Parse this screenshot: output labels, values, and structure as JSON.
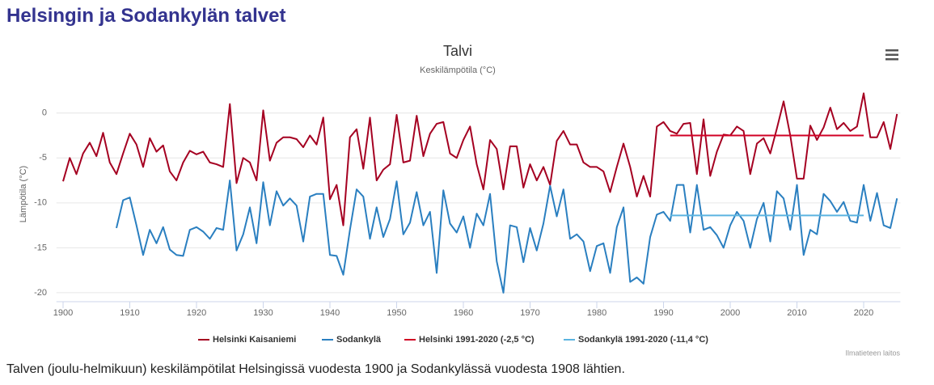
{
  "header": {
    "title": "Helsingin ja Sodankylän talvet"
  },
  "chart_data": {
    "type": "line",
    "title": "Talvi",
    "subtitle": "Keskilämpötila (°C)",
    "y_label": "Lämpötila (°C)",
    "x": [
      1900,
      1901,
      1902,
      1903,
      1904,
      1905,
      1906,
      1907,
      1908,
      1909,
      1910,
      1911,
      1912,
      1913,
      1914,
      1915,
      1916,
      1917,
      1918,
      1919,
      1920,
      1921,
      1922,
      1923,
      1924,
      1925,
      1926,
      1927,
      1928,
      1929,
      1930,
      1931,
      1932,
      1933,
      1934,
      1935,
      1936,
      1937,
      1938,
      1939,
      1940,
      1941,
      1942,
      1943,
      1944,
      1945,
      1946,
      1947,
      1948,
      1949,
      1950,
      1951,
      1952,
      1953,
      1954,
      1955,
      1956,
      1957,
      1958,
      1959,
      1960,
      1961,
      1962,
      1963,
      1964,
      1965,
      1966,
      1967,
      1968,
      1969,
      1970,
      1971,
      1972,
      1973,
      1974,
      1975,
      1976,
      1977,
      1978,
      1979,
      1980,
      1981,
      1982,
      1983,
      1984,
      1985,
      1986,
      1987,
      1988,
      1989,
      1990,
      1991,
      1992,
      1993,
      1994,
      1995,
      1996,
      1997,
      1998,
      1999,
      2000,
      2001,
      2002,
      2003,
      2004,
      2005,
      2006,
      2007,
      2008,
      2009,
      2010,
      2011,
      2012,
      2013,
      2014,
      2015,
      2016,
      2017,
      2018,
      2019,
      2020,
      2021,
      2022,
      2023,
      2024,
      2025
    ],
    "series": [
      {
        "name": "Helsinki Kaisaniemi",
        "color": "#a50021",
        "values": [
          -7.6,
          -5,
          -6.8,
          -4.5,
          -3.3,
          -4.8,
          -2.2,
          -5.5,
          -6.8,
          -4.5,
          -2.3,
          -3.5,
          -6,
          -2.8,
          -4.3,
          -3.6,
          -6.5,
          -7.5,
          -5.5,
          -4.2,
          -4.6,
          -4.3,
          -5.5,
          -5.7,
          -6,
          1,
          -7.8,
          -5,
          -5.5,
          -7.5,
          0.3,
          -5.3,
          -3.3,
          -2.7,
          -2.7,
          -2.9,
          -3.8,
          -2.5,
          -3.5,
          -0.5,
          -9.6,
          -8,
          -12.5,
          -2.7,
          -1.8,
          -6.2,
          -0.5,
          -7.5,
          -6.3,
          -5.7,
          -0.2,
          -5.5,
          -5.3,
          -0.3,
          -4.8,
          -2.3,
          -1.2,
          -1,
          -4.5,
          -5,
          -3,
          -1.5,
          -5.7,
          -8.5,
          -3,
          -4,
          -8.5,
          -3.7,
          -3.7,
          -8.3,
          -5.7,
          -7.5,
          -6,
          -8,
          -3.1,
          -2,
          -3.5,
          -3.5,
          -5.5,
          -6,
          -6,
          -6.5,
          -8.8,
          -6,
          -3.4,
          -6,
          -9.3,
          -7,
          -9.3,
          -1.5,
          -1,
          -2,
          -2.3,
          -1.2,
          -1.1,
          -6.8,
          -0.7,
          -7,
          -4.3,
          -2.4,
          -2.5,
          -1.5,
          -2,
          -6.8,
          -3.4,
          -2.8,
          -4.5,
          -1.7,
          1.3,
          -2.5,
          -7.3,
          -7.3,
          -1.4,
          -3,
          -1.6,
          0.6,
          -1.8,
          -1.1,
          -2,
          -1.5,
          2.2,
          -2.7,
          -2.7,
          -1,
          -4,
          -0.1
        ]
      },
      {
        "name": "Sodankylä",
        "color": "#2a7fc0",
        "values": [
          null,
          null,
          null,
          null,
          null,
          null,
          null,
          null,
          -12.8,
          -9.7,
          -9.4,
          -12.5,
          -15.8,
          -13,
          -14.5,
          -12.7,
          -15.2,
          -15.8,
          -15.9,
          -13,
          -12.7,
          -13.2,
          -14,
          -12.8,
          -13,
          -7.5,
          -15.3,
          -13.5,
          -10.5,
          -14.5,
          -7.7,
          -12.5,
          -8.7,
          -10.3,
          -9.5,
          -10.3,
          -14.3,
          -9.3,
          -9,
          -9,
          -15.8,
          -15.9,
          -18,
          -13,
          -8.5,
          -9.3,
          -14,
          -10.5,
          -13.8,
          -11.8,
          -7.6,
          -13.5,
          -12.2,
          -8.8,
          -12.5,
          -11,
          -17.8,
          -8.6,
          -12.3,
          -13.3,
          -11.5,
          -15,
          -11.2,
          -12.5,
          -9,
          -16.5,
          -20,
          -12.5,
          -12.7,
          -16.6,
          -12.8,
          -15.3,
          -12.3,
          -8.1,
          -11.5,
          -8.5,
          -14,
          -13.5,
          -14.3,
          -17.6,
          -14.8,
          -14.5,
          -17.8,
          -12.7,
          -10.5,
          -18.8,
          -18.3,
          -19,
          -13.8,
          -11.3,
          -11,
          -12,
          -8,
          -8,
          -13.3,
          -8,
          -13,
          -12.7,
          -13.6,
          -15,
          -12.5,
          -11,
          -12,
          -15,
          -11.8,
          -10,
          -14.3,
          -8.7,
          -9.5,
          -13,
          -8,
          -15.8,
          -13,
          -13.5,
          -9,
          -9.8,
          -11,
          -9.9,
          -12,
          -12.2,
          -8,
          -12,
          -8.9,
          -12.5,
          -12.8,
          -9.5
        ]
      }
    ],
    "reference_lines": [
      {
        "name": "Helsinki 1991-2020 (-2,5 °C)",
        "color": "#d10024",
        "from": 1991,
        "to": 2020,
        "value": -2.5
      },
      {
        "name": "Sodankylä 1991-2020 (-11,4 °C)",
        "color": "#5bb4e0",
        "from": 1991,
        "to": 2020,
        "value": -11.4
      }
    ],
    "xlim": [
      1899,
      2025.5
    ],
    "xticks": [
      1900,
      1910,
      1920,
      1930,
      1940,
      1950,
      1960,
      1970,
      1980,
      1990,
      2000,
      2010,
      2020
    ],
    "ylim": [
      -21,
      2.5
    ],
    "yticks": [
      0,
      -5,
      -10,
      -15,
      -20
    ],
    "grid": true,
    "credits": "Ilmatieteen laitos"
  },
  "caption": "Talven (joulu-helmikuun) keskilämpötilat Helsingissä vuodesta 1900 ja Sodankylässä vuodesta 1908 lähtien."
}
